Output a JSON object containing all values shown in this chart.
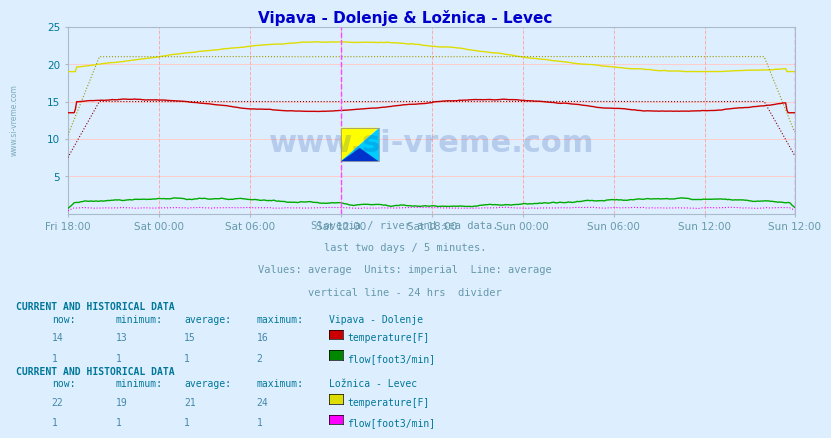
{
  "title": "Vipava - Dolenje & Ložnica - Levec",
  "title_color": "#0000cc",
  "fig_bg_color": "#ddeeff",
  "plot_bg_color": "#ddeeff",
  "ylim": [
    0,
    25
  ],
  "yticks": [
    5,
    10,
    15,
    20,
    25
  ],
  "n_points": 576,
  "xtick_positions": [
    0,
    72,
    144,
    216,
    288,
    360,
    432,
    504,
    575
  ],
  "xtick_labels": [
    "Fri 18:00",
    "Sat 00:00",
    "Sat 06:00",
    "Sat 12:00",
    "Sat 18:00",
    "Sun 00:00",
    "Sun 06:00",
    "Sun 12:00",
    "Sun 12:00"
  ],
  "vipava_temp_color": "#cc0000",
  "vipava_temp_avg_color": "#880000",
  "loznica_temp_color": "#dddd00",
  "loznica_temp_avg_color": "#999900",
  "vipava_flow_color": "#00aa00",
  "loznica_flow_color": "#ff00ff",
  "divider_line_x": 216,
  "end_line_x": 575,
  "vgrid_color": "#ffaaaa",
  "hgrid_color": "#ffcccc",
  "subtitle_lines": [
    "Slovenia / river and sea data.",
    "last two days / 5 minutes.",
    "Values: average  Units: imperial  Line: average",
    "vertical line - 24 hrs  divider"
  ],
  "subtitle_color": "#6699aa",
  "watermark": "www.si-vreme.com",
  "watermark_color": "#003399",
  "sidebar_text": "www.si-vreme.com",
  "station1_name": "Vipava - Dolenje",
  "station2_name": "Ložnica - Levec",
  "table_header_color": "#007799",
  "table_data_color": "#4488aa",
  "s1_temp_now": 14,
  "s1_temp_min": 13,
  "s1_temp_avg": 15,
  "s1_temp_max": 16,
  "s1_flow_now": 1,
  "s1_flow_min": 1,
  "s1_flow_avg": 1,
  "s1_flow_max": 2,
  "s2_temp_now": 22,
  "s2_temp_min": 19,
  "s2_temp_avg": 21,
  "s2_temp_max": 24,
  "s2_flow_now": 1,
  "s2_flow_min": 1,
  "s2_flow_avg": 1,
  "s2_flow_max": 1,
  "temp_color_box1": "#cc0000",
  "flow_color_box1": "#008800",
  "temp_color_box2": "#dddd00",
  "flow_color_box2": "#ff00ff"
}
